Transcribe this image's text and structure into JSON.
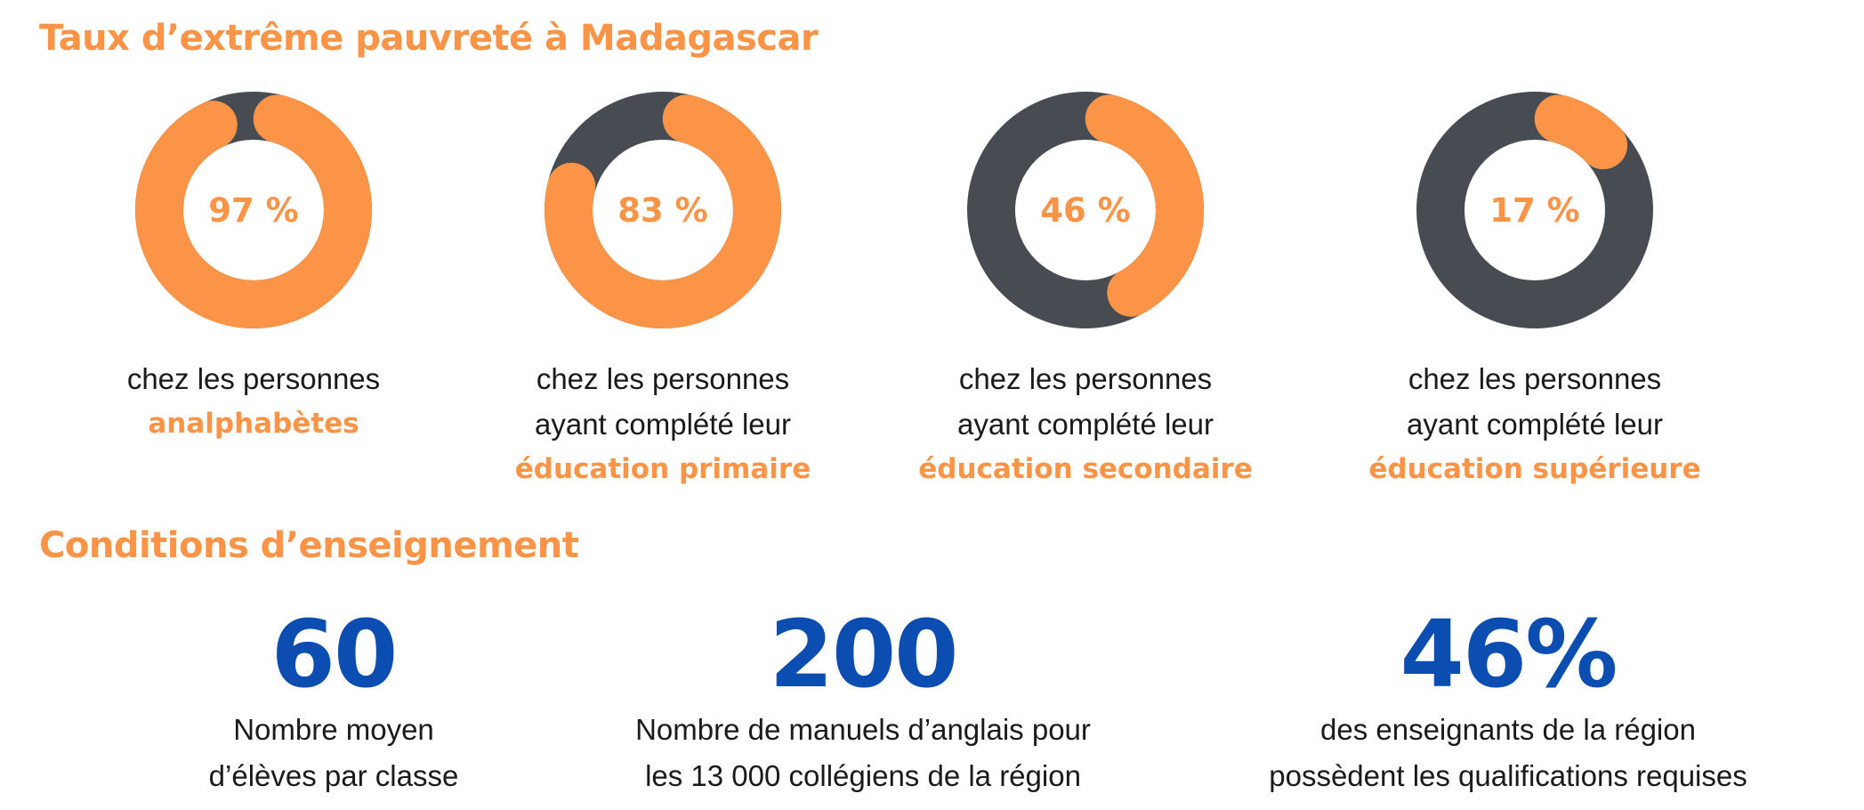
{
  "section1": {
    "title": "Taux d’extrême pauvreté à Madagascar"
  },
  "section2": {
    "title": "Conditions d’enseignement"
  },
  "colors": {
    "accent": "#fc9448",
    "ring_base": "#474c53",
    "stat_blue": "#0b4db1",
    "text": "#1a1a1a"
  },
  "chart_data": [
    {
      "type": "pie",
      "value": 97,
      "unit": "%",
      "label": "97 %",
      "caption_lines": [
        "chez les personnes"
      ],
      "caption_accent": "analphabètes"
    },
    {
      "type": "pie",
      "value": 83,
      "unit": "%",
      "label": "83 %",
      "caption_lines": [
        "chez les personnes",
        "ayant complété leur"
      ],
      "caption_accent": "éducation primaire"
    },
    {
      "type": "pie",
      "value": 46,
      "unit": "%",
      "label": "46 %",
      "caption_lines": [
        "chez les personnes",
        "ayant complété leur"
      ],
      "caption_accent": "éducation secondaire"
    },
    {
      "type": "pie",
      "value": 17,
      "unit": "%",
      "label": "17 %",
      "caption_lines": [
        "chez les personnes",
        "ayant complété leur"
      ],
      "caption_accent": "éducation supérieure"
    }
  ],
  "stats": [
    {
      "value": "60",
      "lines": [
        "Nombre moyen",
        "d’élèves par classe"
      ]
    },
    {
      "value": "200",
      "lines": [
        "Nombre de manuels d’anglais pour",
        "les 13 000 collégiens de la région"
      ]
    },
    {
      "value": "46%",
      "lines": [
        "des enseignants de la région",
        "possèdent les qualifications requises"
      ]
    }
  ]
}
